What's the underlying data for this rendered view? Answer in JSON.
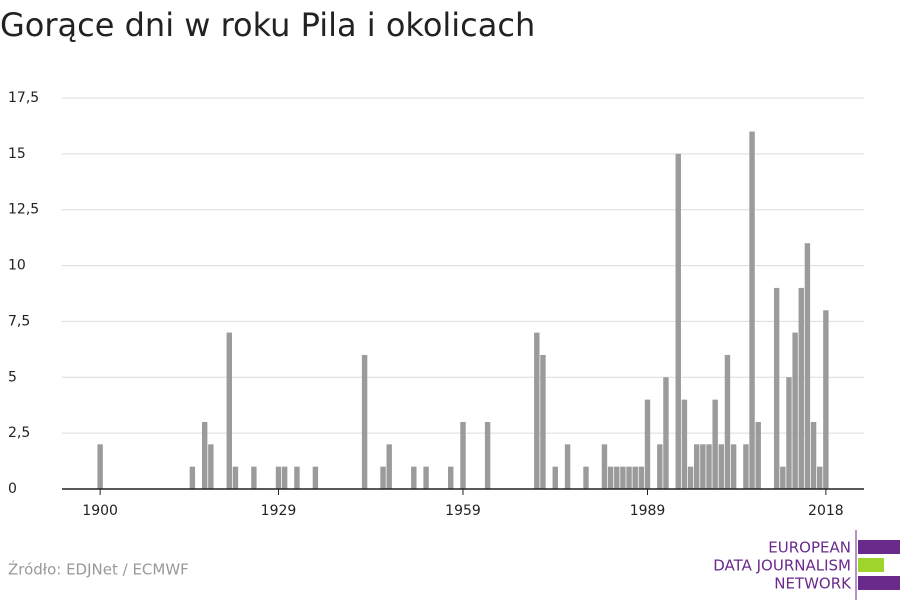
{
  "chart_data": {
    "type": "bar",
    "title": "Gorące dni w roku Pila i okolicach",
    "source": "Źródło: EDJNet / ECMWF",
    "logo": [
      "EUROPEAN",
      "DATA JOURNALISM",
      "NETWORK"
    ],
    "color": "#9b9b9b",
    "grid": true,
    "x": [
      1900,
      1915,
      1917,
      1918,
      1921,
      1922,
      1925,
      1929,
      1930,
      1932,
      1935,
      1943,
      1946,
      1947,
      1951,
      1953,
      1957,
      1959,
      1963,
      1971,
      1972,
      1974,
      1976,
      1979,
      1982,
      1983,
      1984,
      1985,
      1986,
      1987,
      1988,
      1989,
      1991,
      1992,
      1994,
      1995,
      1996,
      1997,
      1998,
      1999,
      2000,
      2001,
      2002,
      2003,
      2005,
      2006,
      2007,
      2010,
      2011,
      2012,
      2013,
      2014,
      2015,
      2016,
      2017,
      2018
    ],
    "values": [
      2,
      1,
      3,
      2,
      7,
      1,
      1,
      1,
      1,
      1,
      1,
      6,
      1,
      2,
      1,
      1,
      1,
      3,
      3,
      7,
      6,
      1,
      2,
      1,
      2,
      1,
      1,
      1,
      1,
      1,
      1,
      4,
      2,
      5,
      15,
      4,
      1,
      2,
      2,
      2,
      4,
      2,
      6,
      2,
      2,
      16,
      3,
      9,
      1,
      5,
      7,
      9,
      11,
      3,
      1,
      8
    ],
    "xlim": [
      1893.8,
      2024.2
    ],
    "xticks": [
      1900,
      1929,
      1959,
      1989,
      2018
    ],
    "ylim": [
      0,
      17.5
    ],
    "yticks": [
      0,
      {
        "value": 2.5,
        "label": "2,5"
      },
      5,
      {
        "value": 7.5,
        "label": "7,5"
      },
      10,
      {
        "value": 12.5,
        "label": "12,5"
      },
      15,
      {
        "value": 17.5,
        "label": "17,5"
      }
    ]
  }
}
